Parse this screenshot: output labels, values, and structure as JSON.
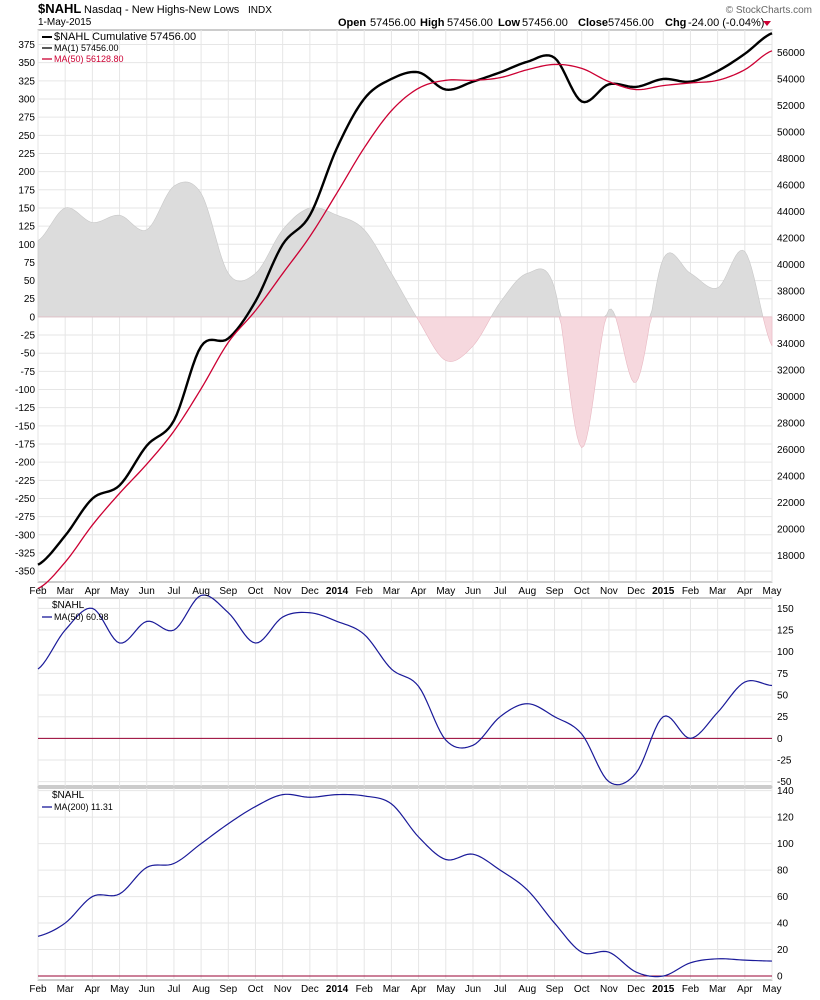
{
  "header": {
    "symbol": "$NAHL",
    "name": "Nasdaq - New Highs-New Lows",
    "exchange": "INDX",
    "date": "1-May-2015",
    "watermark": "© StockCharts.com",
    "quote": {
      "open_label": "Open",
      "open": "57456.00",
      "high_label": "High",
      "high": "57456.00",
      "low_label": "Low",
      "low": "57456.00",
      "close_label": "Close",
      "close": "57456.00",
      "chg_label": "Chg",
      "chg": "-24.00 (-0.04%)"
    },
    "down_color": "#cc0033"
  },
  "colors": {
    "cumulative": "#000000",
    "ma50_main": "#cc0033",
    "histogram_positive": "#dcdcdc",
    "histogram_negative": "#f6d8de",
    "ma_lines": "#1a1a99",
    "zero_line": "#990033",
    "grid": "#e6e6e6"
  },
  "x_axis_labels": [
    "Feb",
    "Mar",
    "Apr",
    "May",
    "Jun",
    "Jul",
    "Aug",
    "Sep",
    "Oct",
    "Nov",
    "Dec",
    "2014",
    "Feb",
    "Mar",
    "Apr",
    "May",
    "Jun",
    "Jul",
    "Aug",
    "Sep",
    "Oct",
    "Nov",
    "Dec",
    "2015",
    "Feb",
    "Mar",
    "Apr",
    "May"
  ],
  "chart_data": [
    {
      "type": "line",
      "panel": "main",
      "x": [
        "Feb 2013",
        "Mar 2013",
        "Apr 2013",
        "May 2013",
        "Jun 2013",
        "Jul 2013",
        "Aug 2013",
        "Sep 2013",
        "Oct 2013",
        "Nov 2013",
        "Dec 2013",
        "Jan 2014",
        "Feb 2014",
        "Mar 2014",
        "Apr 2014",
        "May 2014",
        "Jun 2014",
        "Jul 2014",
        "Aug 2014",
        "Sep 2014",
        "Oct 2014",
        "Nov 2014",
        "Dec 2014",
        "Jan 2015",
        "Feb 2015",
        "Mar 2015",
        "Apr 2015",
        "May 2015"
      ],
      "legend": [
        {
          "label": "$NAHL Cumulative",
          "value": "57456.00"
        },
        {
          "label": "MA(1)",
          "value": "57456.00"
        },
        {
          "label": "MA(50)",
          "value": "56128.80"
        }
      ],
      "series": [
        {
          "name": "$NAHL Cumulative",
          "axis": "right",
          "values": [
            17300,
            19500,
            22300,
            23300,
            26300,
            28200,
            33800,
            34400,
            37200,
            41500,
            43700,
            48800,
            52500,
            54000,
            54500,
            53200,
            53800,
            54500,
            55300,
            55600,
            52300,
            53600,
            53400,
            54000,
            53800,
            54600,
            55900,
            57456
          ]
        },
        {
          "name": "MA(50)",
          "axis": "right",
          "values": [
            15500,
            17500,
            20300,
            22700,
            24900,
            27400,
            30600,
            34100,
            36500,
            39300,
            42100,
            45400,
            48800,
            51600,
            53300,
            53900,
            53900,
            54100,
            54700,
            55100,
            54800,
            53800,
            53200,
            53500,
            53700,
            53900,
            54700,
            56128.8
          ]
        }
      ],
      "histogram": {
        "name": "$NAHL",
        "axis": "left",
        "values": [
          105,
          150,
          130,
          140,
          120,
          180,
          170,
          60,
          60,
          120,
          150,
          140,
          120,
          60,
          -5,
          -60,
          -40,
          20,
          60,
          40,
          -180,
          10,
          -90,
          80,
          60,
          40,
          90,
          -40
        ]
      },
      "left_axis": {
        "min": -365,
        "max": 395,
        "ticks": [
          -350,
          -325,
          -300,
          -275,
          -250,
          -225,
          -200,
          -175,
          -150,
          -125,
          -100,
          -75,
          -50,
          -25,
          0,
          25,
          50,
          75,
          100,
          125,
          150,
          175,
          200,
          225,
          250,
          275,
          300,
          325,
          350,
          375
        ]
      },
      "right_axis": {
        "min": 16000,
        "max": 57700,
        "ticks": [
          18000,
          20000,
          22000,
          24000,
          26000,
          28000,
          30000,
          32000,
          34000,
          36000,
          38000,
          40000,
          42000,
          44000,
          46000,
          48000,
          50000,
          52000,
          54000,
          56000
        ]
      }
    },
    {
      "type": "line",
      "panel": "ma50",
      "title": "$NAHL",
      "x": [
        "Feb 2013",
        "Mar 2013",
        "Apr 2013",
        "May 2013",
        "Jun 2013",
        "Jul 2013",
        "Aug 2013",
        "Sep 2013",
        "Oct 2013",
        "Nov 2013",
        "Dec 2013",
        "Jan 2014",
        "Feb 2014",
        "Mar 2014",
        "Apr 2014",
        "May 2014",
        "Jun 2014",
        "Jul 2014",
        "Aug 2014",
        "Sep 2014",
        "Oct 2014",
        "Nov 2014",
        "Dec 2014",
        "Jan 2015",
        "Feb 2015",
        "Mar 2015",
        "Apr 2015",
        "May 2015"
      ],
      "legend": [
        {
          "label": "MA(50)",
          "value": "60.98"
        }
      ],
      "series": [
        {
          "name": "MA(50)",
          "values": [
            80,
            125,
            150,
            110,
            135,
            125,
            165,
            145,
            110,
            140,
            145,
            135,
            120,
            80,
            60,
            -2,
            -8,
            25,
            40,
            25,
            5,
            -50,
            -40,
            25,
            0,
            30,
            65,
            60.98
          ]
        }
      ],
      "y_axis": {
        "min": -55,
        "max": 162,
        "ticks": [
          -50,
          -25,
          0,
          25,
          50,
          75,
          100,
          125,
          150
        ]
      },
      "zero_line": 0
    },
    {
      "type": "line",
      "panel": "ma200",
      "title": "$NAHL",
      "x": [
        "Feb 2013",
        "Mar 2013",
        "Apr 2013",
        "May 2013",
        "Jun 2013",
        "Jul 2013",
        "Aug 2013",
        "Sep 2013",
        "Oct 2013",
        "Nov 2013",
        "Dec 2013",
        "Jan 2014",
        "Feb 2014",
        "Mar 2014",
        "Apr 2014",
        "May 2014",
        "Jun 2014",
        "Jul 2014",
        "Aug 2014",
        "Sep 2014",
        "Oct 2014",
        "Nov 2014",
        "Dec 2014",
        "Jan 2015",
        "Feb 2015",
        "Mar 2015",
        "Apr 2015",
        "May 2015"
      ],
      "legend": [
        {
          "label": "MA(200)",
          "value": "11.31"
        }
      ],
      "series": [
        {
          "name": "MA(200)",
          "values": [
            30,
            40,
            60,
            62,
            82,
            85,
            100,
            115,
            128,
            137,
            135,
            137,
            136,
            130,
            105,
            88,
            92,
            80,
            65,
            40,
            18,
            18,
            3,
            0,
            10,
            13,
            12,
            11.31
          ]
        }
      ],
      "y_axis": {
        "min": -3,
        "max": 142,
        "ticks": [
          0,
          20,
          40,
          60,
          80,
          100,
          120,
          140
        ]
      },
      "zero_line": 0
    }
  ]
}
